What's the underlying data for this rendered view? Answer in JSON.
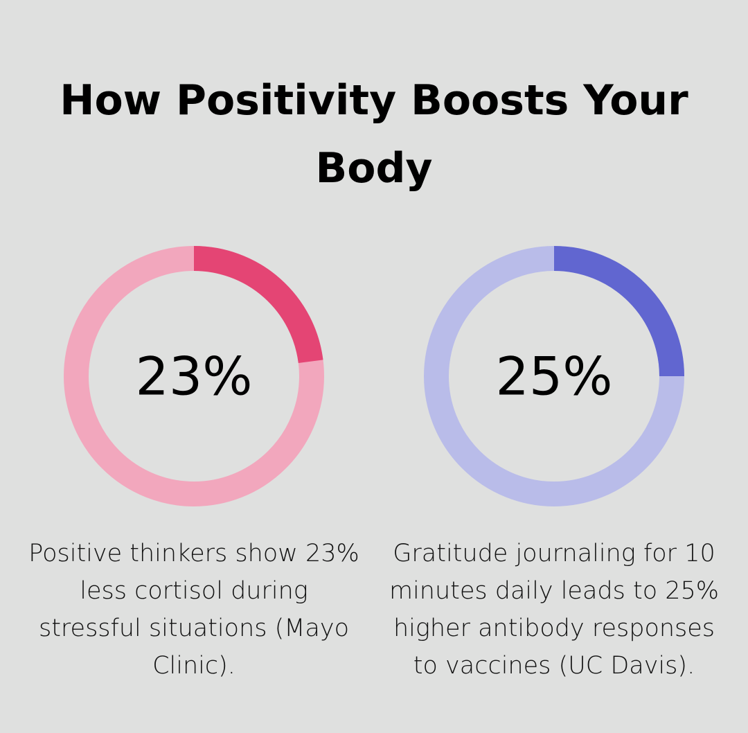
{
  "title": "How Positivity Boosts Your Body",
  "chart_data": [
    {
      "type": "donut",
      "values": [
        23
      ],
      "value_labels": [
        "23%"
      ],
      "ylim": [
        0,
        100
      ],
      "color": "#e44574",
      "track_color": "#f2a7bd",
      "description": "Positive thinkers show 23% less cortisol during stressful situations (Mayo Clinic)."
    },
    {
      "type": "donut",
      "values": [
        25
      ],
      "value_labels": [
        "25%"
      ],
      "ylim": [
        0,
        100
      ],
      "color": "#6166d0",
      "track_color": "#b9bce9",
      "description": "Gratitude journaling for 10 minutes daily leads to 25% higher antibody responses to vaccines (UC Davis)."
    }
  ]
}
